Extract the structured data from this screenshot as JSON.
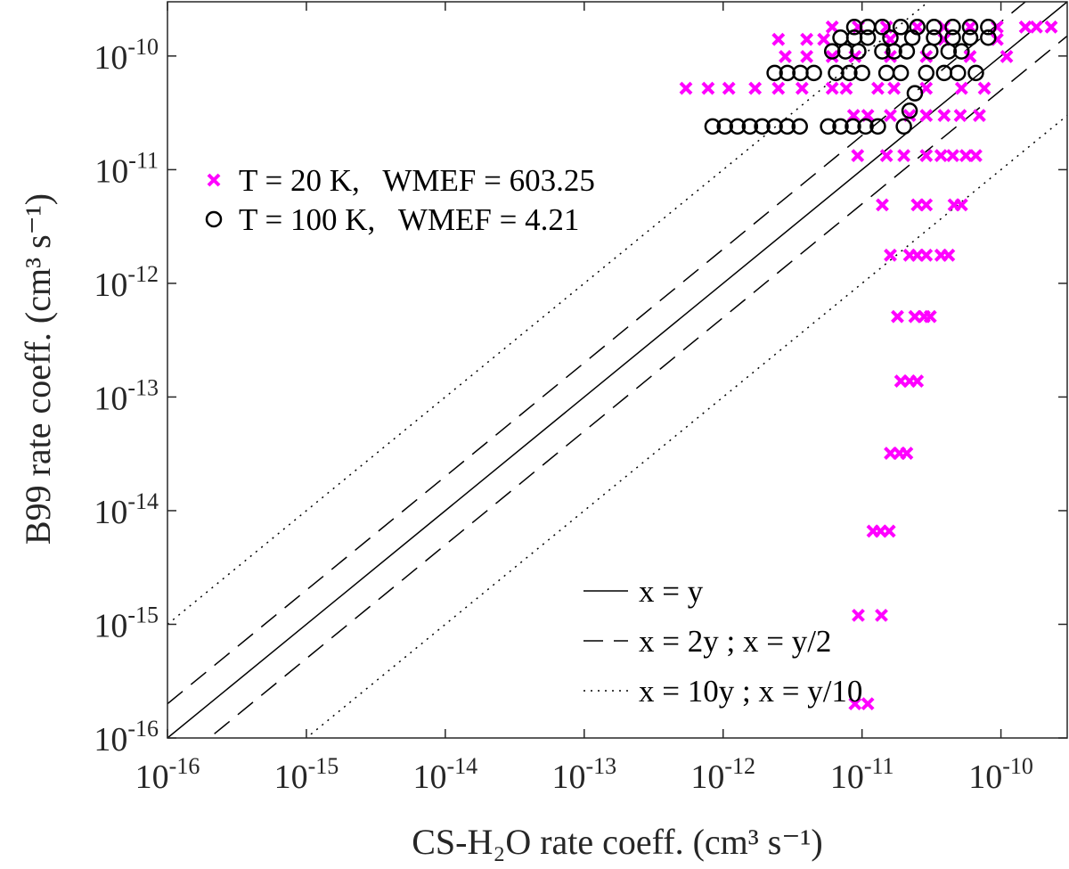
{
  "chart_data": {
    "type": "scatter",
    "xlabel": "CS-H₂O rate coeff. (cm³ s⁻¹)",
    "ylabel": "B99 rate coeff. (cm³ s⁻¹)",
    "xscale": "log",
    "yscale": "log",
    "xlim": [
      1e-16,
      3e-10
    ],
    "ylim": [
      1e-16,
      3e-10
    ],
    "xticks": [
      {
        "value": 1e-16,
        "base": "10",
        "exponent": "-16"
      },
      {
        "value": 1e-15,
        "base": "10",
        "exponent": "-15"
      },
      {
        "value": 1e-14,
        "base": "10",
        "exponent": "-14"
      },
      {
        "value": 1e-13,
        "base": "10",
        "exponent": "-13"
      },
      {
        "value": 1e-12,
        "base": "10",
        "exponent": "-12"
      },
      {
        "value": 1e-11,
        "base": "10",
        "exponent": "-11"
      },
      {
        "value": 1e-10,
        "base": "10",
        "exponent": "-10"
      }
    ],
    "yticks": [
      {
        "value": 1e-16,
        "base": "10",
        "exponent": "-16"
      },
      {
        "value": 1e-15,
        "base": "10",
        "exponent": "-15"
      },
      {
        "value": 1e-14,
        "base": "10",
        "exponent": "-14"
      },
      {
        "value": 1e-13,
        "base": "10",
        "exponent": "-13"
      },
      {
        "value": 1e-12,
        "base": "10",
        "exponent": "-12"
      },
      {
        "value": 1e-11,
        "base": "10",
        "exponent": "-11"
      },
      {
        "value": 1e-10,
        "base": "10",
        "exponent": "-10"
      }
    ],
    "grid": false,
    "legend": "upper left",
    "line_legend": "lower right",
    "series": [
      {
        "name": "T = 20 K,   WMEF = 603.25",
        "color": "#ff00ff",
        "marker": "x",
        "x": [
          8.9e-12,
          1.1e-11,
          9.4e-12,
          1.38e-11,
          1.2e-11,
          1.36e-11,
          1.57e-11,
          1.6e-11,
          1.86e-11,
          2.1e-11,
          1.9e-11,
          2.2e-11,
          2.5e-11,
          1.8e-11,
          2.4e-11,
          2.8e-11,
          3.1e-11,
          1.6e-11,
          2.2e-11,
          2.5e-11,
          2.9e-11,
          3.7e-11,
          4.2e-11,
          1.4e-11,
          2.5e-11,
          2.9e-11,
          4.6e-11,
          5.2e-11,
          9.3e-12,
          1.5e-11,
          2e-11,
          2.9e-11,
          3.7e-11,
          4.5e-11,
          5.6e-11,
          6.6e-11,
          8.7e-12,
          1.1e-11,
          1.6e-11,
          2.2e-11,
          2.9e-11,
          3.9e-11,
          5.1e-11,
          7e-11,
          5.4e-13,
          7.8e-13,
          1.1e-12,
          1.7e-12,
          2.5e-12,
          3.7e-12,
          6.1e-12,
          7.7e-12,
          1.3e-11,
          1.7e-11,
          2.9e-11,
          5.2e-11,
          7.6e-11,
          2.8e-12,
          4e-12,
          6.1e-12,
          8.9e-12,
          1.6e-11,
          2.9e-11,
          6e-11,
          1.1e-10,
          2.5e-12,
          4e-12,
          5.3e-12,
          1.6e-11,
          3.9e-11,
          9.4e-11,
          6.1e-12,
          9.4e-12,
          1.5e-11,
          2.5e-11,
          3.9e-11,
          6e-11,
          9.4e-11,
          1.5e-10,
          1.8e-10,
          2.3e-10
        ],
        "values": [
          2e-16,
          2e-16,
          1.2e-15,
          1.2e-15,
          6.6e-15,
          6.6e-15,
          6.6e-15,
          3.2e-14,
          3.2e-14,
          3.2e-14,
          1.38e-13,
          1.38e-13,
          1.38e-13,
          5.1e-13,
          5.1e-13,
          5.1e-13,
          5.1e-13,
          1.77e-12,
          1.77e-12,
          1.77e-12,
          1.77e-12,
          1.77e-12,
          1.77e-12,
          4.9e-12,
          4.9e-12,
          4.9e-12,
          4.9e-12,
          4.9e-12,
          1.33e-11,
          1.33e-11,
          1.33e-11,
          1.33e-11,
          1.33e-11,
          1.33e-11,
          1.33e-11,
          1.33e-11,
          3e-11,
          3e-11,
          3e-11,
          3e-11,
          3e-11,
          3e-11,
          3e-11,
          3e-11,
          5.2e-11,
          5.2e-11,
          5.2e-11,
          5.2e-11,
          5.2e-11,
          5.2e-11,
          5.2e-11,
          5.2e-11,
          5.2e-11,
          5.2e-11,
          5.2e-11,
          5.2e-11,
          5.2e-11,
          9.9e-11,
          9.9e-11,
          9.9e-11,
          9.9e-11,
          9.9e-11,
          9.9e-11,
          9.9e-11,
          9.9e-11,
          1.4e-10,
          1.4e-10,
          1.4e-10,
          1.4e-10,
          1.4e-10,
          1.4e-10,
          1.8e-10,
          1.8e-10,
          1.8e-10,
          1.8e-10,
          1.8e-10,
          1.8e-10,
          1.8e-10,
          1.8e-10,
          1.8e-10,
          1.8e-10
        ]
      },
      {
        "name": "T = 100 K,   WMEF = 4.21",
        "color": "#000000",
        "marker": "o",
        "x": [
          8.4e-13,
          1.03e-12,
          1.27e-12,
          1.56e-12,
          1.91e-12,
          2.35e-12,
          2.9e-12,
          3.56e-12,
          5.7e-12,
          7e-12,
          8.6e-12,
          1.06e-11,
          1.3e-11,
          2e-11,
          2.2e-11,
          2.4e-11,
          2.35e-12,
          2.9e-12,
          3.6e-12,
          4.5e-12,
          6.5e-12,
          8.1e-12,
          1e-11,
          1.5e-11,
          1.9e-11,
          2.9e-11,
          3.9e-11,
          4.9e-11,
          6.6e-11,
          6.1e-12,
          7.6e-12,
          9.4e-12,
          1.4e-11,
          1.7e-11,
          2.1e-11,
          3.1e-11,
          4.2e-11,
          5.2e-11,
          7e-12,
          8.8e-12,
          1.1e-11,
          1.6e-11,
          2.3e-11,
          3.3e-11,
          4.5e-11,
          6e-11,
          8.1e-11,
          8.8e-12,
          1.1e-11,
          1.4e-11,
          1.9e-11,
          2.5e-11,
          3.3e-11,
          4.5e-11,
          6e-11,
          8.1e-11
        ],
        "values": [
          2.4e-11,
          2.4e-11,
          2.4e-11,
          2.4e-11,
          2.4e-11,
          2.4e-11,
          2.4e-11,
          2.4e-11,
          2.4e-11,
          2.4e-11,
          2.4e-11,
          2.4e-11,
          2.4e-11,
          2.4e-11,
          3.3e-11,
          4.7e-11,
          7.1e-11,
          7.1e-11,
          7.1e-11,
          7.1e-11,
          7.1e-11,
          7.1e-11,
          7.1e-11,
          7.1e-11,
          7.1e-11,
          7.1e-11,
          7.1e-11,
          7.1e-11,
          7.1e-11,
          1.1e-10,
          1.1e-10,
          1.1e-10,
          1.1e-10,
          1.1e-10,
          1.1e-10,
          1.1e-10,
          1.1e-10,
          1.1e-10,
          1.45e-10,
          1.45e-10,
          1.45e-10,
          1.45e-10,
          1.45e-10,
          1.45e-10,
          1.45e-10,
          1.45e-10,
          1.45e-10,
          1.8e-10,
          1.8e-10,
          1.8e-10,
          1.8e-10,
          1.8e-10,
          1.8e-10,
          1.8e-10,
          1.8e-10,
          1.8e-10
        ]
      }
    ],
    "reference_lines": [
      {
        "name": "x = y",
        "style": "solid",
        "multipliers": [
          1
        ]
      },
      {
        "name": "x = 2y ; x = y/2",
        "style": "dashed",
        "multipliers": [
          2,
          0.5
        ]
      },
      {
        "name": "x = 10y ; x = y/10",
        "style": "dotted",
        "multipliers": [
          10,
          0.1
        ]
      }
    ]
  }
}
